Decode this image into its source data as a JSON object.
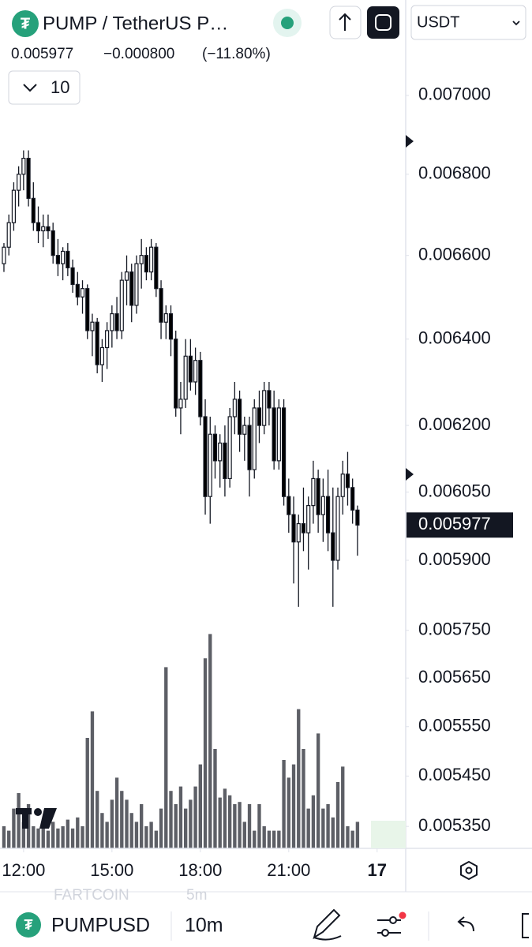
{
  "header": {
    "symbol_title": "PUMP / TetherUS P…",
    "last_price": "0.005977",
    "change": "−0.000800",
    "change_pct": "(−11.80%)",
    "interval_count": "10",
    "currency": "USDT"
  },
  "chart_data": {
    "type": "candlestick",
    "log_scale": true,
    "ylim": [
      0.005307,
      0.00725
    ],
    "yticks": [
      {
        "value": 0.007,
        "label": "0.007000"
      },
      {
        "value": 0.0068,
        "label": "0.006800"
      },
      {
        "value": 0.0066,
        "label": "0.006600"
      },
      {
        "value": 0.0064,
        "label": "0.006400"
      },
      {
        "value": 0.0062,
        "label": "0.006200"
      },
      {
        "value": 0.00605,
        "label": "0.006050"
      },
      {
        "value": 0.0059,
        "label": "0.005900"
      },
      {
        "value": 0.00575,
        "label": "0.005750"
      },
      {
        "value": 0.00565,
        "label": "0.005650"
      },
      {
        "value": 0.00555,
        "label": "0.005550"
      },
      {
        "value": 0.00545,
        "label": "0.005450"
      },
      {
        "value": 0.00535,
        "label": "0.005350"
      }
    ],
    "xlim": [
      -0.8,
      81.5
    ],
    "xticks": [
      {
        "value": 4,
        "label": "12:00"
      },
      {
        "value": 22,
        "label": "15:00"
      },
      {
        "value": 40,
        "label": "18:00"
      },
      {
        "value": 58,
        "label": "21:00"
      },
      {
        "value": 76,
        "label": "17"
      }
    ],
    "current_price": {
      "value": 0.005977,
      "label": "0.005977"
    },
    "up_color": "#ffffff",
    "down_color": "#000000",
    "volume_color": "#5d5f66",
    "open": [
      0.00658,
      0.00662,
      0.00668,
      0.00676,
      0.0068,
      0.00684,
      0.00674,
      0.00668,
      0.00666,
      0.00667,
      0.00666,
      0.0066,
      0.00658,
      0.00661,
      0.00657,
      0.00653,
      0.0065,
      0.00652,
      0.00642,
      0.00644,
      0.00634,
      0.00638,
      0.00642,
      0.00646,
      0.00642,
      0.00654,
      0.00656,
      0.00648,
      0.00658,
      0.0066,
      0.00656,
      0.00662,
      0.00652,
      0.00644,
      0.00646,
      0.0064,
      0.00624,
      0.00626,
      0.00636,
      0.0063,
      0.00635,
      0.00622,
      0.00604,
      0.00618,
      0.00612,
      0.00616,
      0.00608,
      0.00622,
      0.00626,
      0.00618,
      0.0062,
      0.0061,
      0.00624,
      0.0062,
      0.00628,
      0.00624,
      0.00612,
      0.00624,
      0.00604,
      0.006,
      0.00594,
      0.00598,
      0.00596,
      0.00602,
      0.00608,
      0.006,
      0.00604,
      0.00596,
      0.0059,
      0.00604,
      0.00609,
      0.00606,
      0.00601
    ],
    "high": [
      0.00663,
      0.0067,
      0.00678,
      0.00682,
      0.00686,
      0.00686,
      0.00678,
      0.00672,
      0.0067,
      0.0067,
      0.00668,
      0.00664,
      0.00662,
      0.00663,
      0.00659,
      0.00656,
      0.00654,
      0.00653,
      0.00646,
      0.00645,
      0.0064,
      0.00644,
      0.00648,
      0.0065,
      0.00656,
      0.0066,
      0.00658,
      0.0066,
      0.00664,
      0.00662,
      0.00664,
      0.00663,
      0.00654,
      0.00648,
      0.00648,
      0.00642,
      0.0063,
      0.0064,
      0.0064,
      0.00638,
      0.00637,
      0.00626,
      0.00622,
      0.0062,
      0.00618,
      0.0062,
      0.00624,
      0.0063,
      0.00628,
      0.00622,
      0.00622,
      0.00626,
      0.00628,
      0.0063,
      0.0063,
      0.00628,
      0.00626,
      0.00626,
      0.00608,
      0.00604,
      0.006,
      0.00606,
      0.00604,
      0.00612,
      0.0061,
      0.00608,
      0.0061,
      0.00606,
      0.00606,
      0.00612,
      0.00614,
      0.00608,
      0.00602
    ],
    "low": [
      0.00656,
      0.0066,
      0.00666,
      0.00672,
      0.00676,
      0.00672,
      0.00666,
      0.00663,
      0.00662,
      0.00664,
      0.00658,
      0.00655,
      0.00654,
      0.00655,
      0.00651,
      0.00648,
      0.00646,
      0.0064,
      0.00636,
      0.00632,
      0.0063,
      0.00633,
      0.00638,
      0.0064,
      0.0064,
      0.00648,
      0.00644,
      0.00646,
      0.00652,
      0.00654,
      0.00654,
      0.0065,
      0.0064,
      0.0064,
      0.00636,
      0.00622,
      0.00618,
      0.00624,
      0.00628,
      0.00627,
      0.0062,
      0.006,
      0.00598,
      0.00608,
      0.00606,
      0.00604,
      0.00606,
      0.00618,
      0.00614,
      0.00612,
      0.00604,
      0.00608,
      0.00616,
      0.00618,
      0.0062,
      0.0061,
      0.0061,
      0.00602,
      0.00596,
      0.00585,
      0.0058,
      0.00592,
      0.00588,
      0.00598,
      0.00596,
      0.00594,
      0.00592,
      0.0058,
      0.00588,
      0.006,
      0.00602,
      0.00598,
      0.00591
    ],
    "close": [
      0.00662,
      0.00668,
      0.00676,
      0.0068,
      0.00684,
      0.00674,
      0.00668,
      0.00666,
      0.00667,
      0.00666,
      0.0066,
      0.00658,
      0.00661,
      0.00657,
      0.00653,
      0.0065,
      0.00652,
      0.00642,
      0.00644,
      0.00634,
      0.00638,
      0.00642,
      0.00646,
      0.00642,
      0.00654,
      0.00656,
      0.00648,
      0.00658,
      0.0066,
      0.00656,
      0.00662,
      0.00652,
      0.00644,
      0.00646,
      0.0064,
      0.00624,
      0.00626,
      0.00636,
      0.0063,
      0.00635,
      0.00622,
      0.00604,
      0.00618,
      0.00612,
      0.00616,
      0.00608,
      0.00622,
      0.00626,
      0.00618,
      0.0062,
      0.0061,
      0.00624,
      0.0062,
      0.00628,
      0.00624,
      0.00612,
      0.00624,
      0.00604,
      0.006,
      0.00594,
      0.00598,
      0.00596,
      0.00602,
      0.00608,
      0.006,
      0.00604,
      0.00596,
      0.0059,
      0.00604,
      0.00609,
      0.00606,
      0.00601,
      0.005977
    ],
    "volume_ylim": [
      0,
      100
    ],
    "volume": [
      10,
      8,
      18,
      25,
      12,
      20,
      10,
      9,
      11,
      8,
      12,
      9,
      10,
      13,
      9,
      14,
      10,
      50,
      62,
      26,
      16,
      12,
      22,
      32,
      26,
      22,
      16,
      12,
      20,
      10,
      12,
      8,
      18,
      82,
      26,
      20,
      28,
      18,
      22,
      28,
      38,
      86,
      97,
      45,
      23,
      27,
      24,
      20,
      21,
      12,
      20,
      8,
      20,
      10,
      8,
      8,
      8,
      40,
      32,
      38,
      63,
      45,
      18,
      24,
      52,
      18,
      20,
      14,
      30,
      37,
      10,
      8,
      12
    ]
  },
  "footer": {
    "prev_symbol": "FARTCOIN",
    "prev_interval": "5m",
    "symbol": "PUMPUSD",
    "interval": "10m"
  }
}
